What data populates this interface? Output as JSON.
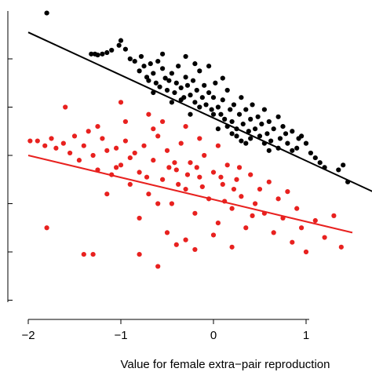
{
  "chart_data": {
    "type": "scatter",
    "title": "",
    "xlabel": "Value for female extra−pair reproduction",
    "ylabel": "",
    "xlim": [
      -2.2,
      1.75
    ],
    "ylim": [
      -3.2,
      3.05
    ],
    "x_ticks": [
      -2,
      -1,
      0,
      1
    ],
    "x_tick_labels": [
      "−2",
      "−1",
      "0",
      "1"
    ],
    "y_ticks": [
      -3,
      -2,
      -1,
      0,
      1,
      2
    ],
    "y_tick_labels": [
      "",
      "",
      "",
      "",
      "",
      ""
    ],
    "grid": false,
    "legend": "none",
    "series": [
      {
        "color": "#000000",
        "fit_line": {
          "x": [
            -2.0,
            1.72
          ],
          "y": [
            2.55,
            -0.75
          ]
        },
        "points": [
          [
            -1.8,
            2.95
          ],
          [
            -1.32,
            2.1
          ],
          [
            -1.28,
            2.1
          ],
          [
            -1.25,
            2.08
          ],
          [
            -1.2,
            2.1
          ],
          [
            -1.15,
            2.13
          ],
          [
            -1.1,
            2.18
          ],
          [
            -1.02,
            2.28
          ],
          [
            -1.0,
            2.38
          ],
          [
            -0.95,
            2.2
          ],
          [
            -0.9,
            2.0
          ],
          [
            -0.85,
            1.95
          ],
          [
            -0.8,
            1.75
          ],
          [
            -0.78,
            2.05
          ],
          [
            -0.75,
            1.85
          ],
          [
            -0.72,
            1.62
          ],
          [
            -0.7,
            1.55
          ],
          [
            -0.68,
            1.9
          ],
          [
            -0.65,
            1.7
          ],
          [
            -0.62,
            1.5
          ],
          [
            -0.6,
            1.95
          ],
          [
            -0.58,
            1.42
          ],
          [
            -0.55,
            1.8
          ],
          [
            -0.52,
            1.6
          ],
          [
            -0.5,
            1.35
          ],
          [
            -0.48,
            1.55
          ],
          [
            -0.45,
            1.7
          ],
          [
            -0.42,
            1.3
          ],
          [
            -0.4,
            1.5
          ],
          [
            -0.38,
            1.85
          ],
          [
            -0.35,
            1.4
          ],
          [
            -0.32,
            1.2
          ],
          [
            -0.3,
            1.62
          ],
          [
            -0.28,
            1.45
          ],
          [
            -0.25,
            1.25
          ],
          [
            -0.22,
            1.55
          ],
          [
            -0.2,
            1.1
          ],
          [
            -0.18,
            1.35
          ],
          [
            -0.15,
            1.75
          ],
          [
            -0.12,
            1.2
          ],
          [
            -0.1,
            1.45
          ],
          [
            -0.08,
            1.05
          ],
          [
            -0.05,
            1.3
          ],
          [
            -0.02,
            0.95
          ],
          [
            0.0,
            1.2
          ],
          [
            0.02,
            1.5
          ],
          [
            0.05,
            1.0
          ],
          [
            0.08,
            0.85
          ],
          [
            0.1,
            1.15
          ],
          [
            0.12,
            0.75
          ],
          [
            0.15,
            1.35
          ],
          [
            0.18,
            0.95
          ],
          [
            0.2,
            0.7
          ],
          [
            0.22,
            1.05
          ],
          [
            0.25,
            0.55
          ],
          [
            0.28,
            0.85
          ],
          [
            0.3,
            1.2
          ],
          [
            0.32,
            0.65
          ],
          [
            0.35,
            0.95
          ],
          [
            0.38,
            0.5
          ],
          [
            0.4,
            0.75
          ],
          [
            0.42,
            1.05
          ],
          [
            0.45,
            0.55
          ],
          [
            0.48,
            0.8
          ],
          [
            0.5,
            0.4
          ],
          [
            0.52,
            0.65
          ],
          [
            0.55,
            0.95
          ],
          [
            0.58,
            0.45
          ],
          [
            0.6,
            0.7
          ],
          [
            0.62,
            0.3
          ],
          [
            0.65,
            0.55
          ],
          [
            0.7,
            0.8
          ],
          [
            0.72,
            0.35
          ],
          [
            0.75,
            0.6
          ],
          [
            0.8,
            0.25
          ],
          [
            0.85,
            0.5
          ],
          [
            0.9,
            0.15
          ],
          [
            0.95,
            0.4
          ],
          [
            1.05,
            0.05
          ],
          [
            1.1,
            -0.05
          ],
          [
            1.15,
            -0.15
          ],
          [
            1.2,
            -0.25
          ],
          [
            1.35,
            -0.3
          ],
          [
            1.4,
            -0.2
          ],
          [
            1.45,
            -0.55
          ],
          [
            -0.55,
            2.1
          ],
          [
            -0.3,
            2.05
          ],
          [
            -0.2,
            1.9
          ],
          [
            -0.05,
            1.85
          ],
          [
            0.1,
            1.6
          ],
          [
            -0.65,
            1.3
          ],
          [
            -0.45,
            1.1
          ],
          [
            -0.35,
            1.15
          ],
          [
            -0.15,
            1.0
          ],
          [
            0.0,
            0.85
          ],
          [
            0.15,
            0.6
          ],
          [
            0.25,
            0.4
          ],
          [
            0.3,
            0.3
          ],
          [
            0.4,
            0.35
          ],
          [
            0.55,
            0.25
          ],
          [
            0.6,
            0.1
          ],
          [
            0.7,
            0.15
          ],
          [
            0.78,
            0.45
          ],
          [
            0.85,
            0.1
          ],
          [
            0.92,
            0.35
          ],
          [
            1.0,
            0.25
          ],
          [
            -0.25,
            0.85
          ],
          [
            0.05,
            0.55
          ],
          [
            0.2,
            0.45
          ],
          [
            0.35,
            0.25
          ]
        ]
      },
      {
        "color": "#e8211f",
        "fit_line": {
          "x": [
            -2.0,
            1.5
          ],
          "y": [
            0.0,
            -1.6
          ]
        },
        "points": [
          [
            -1.98,
            0.3
          ],
          [
            -1.9,
            0.3
          ],
          [
            -1.82,
            0.2
          ],
          [
            -1.75,
            0.35
          ],
          [
            -1.7,
            0.15
          ],
          [
            -1.62,
            0.25
          ],
          [
            -1.55,
            0.05
          ],
          [
            -1.5,
            0.4
          ],
          [
            -1.45,
            -0.1
          ],
          [
            -1.4,
            0.2
          ],
          [
            -1.35,
            0.5
          ],
          [
            -1.3,
            0.0
          ],
          [
            -1.25,
            -0.3
          ],
          [
            -1.2,
            0.35
          ],
          [
            -1.15,
            0.1
          ],
          [
            -1.1,
            -0.4
          ],
          [
            -1.05,
            0.15
          ],
          [
            -1.0,
            -0.2
          ],
          [
            -0.95,
            0.3
          ],
          [
            -0.9,
            -0.6
          ],
          [
            -0.85,
            0.05
          ],
          [
            -0.8,
            -0.35
          ],
          [
            -0.75,
            0.2
          ],
          [
            -0.7,
            -0.8
          ],
          [
            -0.65,
            -0.1
          ],
          [
            -0.6,
            0.4
          ],
          [
            -0.55,
            -0.5
          ],
          [
            -0.5,
            0.1
          ],
          [
            -0.45,
            -1.0
          ],
          [
            -0.4,
            -0.3
          ],
          [
            -0.35,
            0.25
          ],
          [
            -0.3,
            -0.7
          ],
          [
            -0.25,
            -0.15
          ],
          [
            -0.2,
            -1.2
          ],
          [
            -0.15,
            -0.45
          ],
          [
            -0.1,
            0.0
          ],
          [
            -0.05,
            -0.9
          ],
          [
            0.0,
            -0.35
          ],
          [
            0.05,
            -1.4
          ],
          [
            0.1,
            -0.6
          ],
          [
            0.15,
            -0.2
          ],
          [
            0.2,
            -1.1
          ],
          [
            0.25,
            -0.5
          ],
          [
            0.3,
            -0.85
          ],
          [
            0.35,
            -1.5
          ],
          [
            0.4,
            -0.4
          ],
          [
            0.45,
            -1.0
          ],
          [
            0.5,
            -0.7
          ],
          [
            0.55,
            -1.2
          ],
          [
            0.6,
            -0.55
          ],
          [
            0.65,
            -1.6
          ],
          [
            0.7,
            -0.9
          ],
          [
            0.75,
            -1.3
          ],
          [
            0.8,
            -0.75
          ],
          [
            0.85,
            -1.8
          ],
          [
            0.9,
            -1.1
          ],
          [
            0.95,
            -1.5
          ],
          [
            1.0,
            -2.0
          ],
          [
            1.1,
            -1.35
          ],
          [
            1.2,
            -1.7
          ],
          [
            1.3,
            -1.25
          ],
          [
            1.38,
            -1.9
          ],
          [
            -1.8,
            -1.5
          ],
          [
            -1.4,
            -2.05
          ],
          [
            -1.3,
            -2.05
          ],
          [
            -1.6,
            1.0
          ],
          [
            -1.0,
            1.1
          ],
          [
            -0.8,
            -2.05
          ],
          [
            -0.6,
            -2.3
          ],
          [
            -0.4,
            -1.85
          ],
          [
            -0.2,
            -1.95
          ],
          [
            -0.5,
            -1.6
          ],
          [
            -0.3,
            -1.75
          ],
          [
            0.0,
            -1.65
          ],
          [
            0.2,
            -1.9
          ],
          [
            -0.95,
            0.7
          ],
          [
            -0.7,
            0.85
          ],
          [
            -0.55,
            0.7
          ],
          [
            -0.3,
            0.6
          ],
          [
            -0.15,
            0.35
          ],
          [
            0.05,
            0.2
          ],
          [
            -0.8,
            -1.3
          ],
          [
            -0.6,
            -1.0
          ],
          [
            -0.42,
            -0.15
          ],
          [
            -0.28,
            -0.4
          ],
          [
            -0.12,
            -0.65
          ],
          [
            0.12,
            -0.95
          ],
          [
            0.28,
            -0.25
          ],
          [
            0.42,
            -1.25
          ],
          [
            -1.15,
            -0.8
          ],
          [
            -1.25,
            0.6
          ],
          [
            -0.9,
            -0.05
          ],
          [
            -0.72,
            -0.45
          ],
          [
            -0.38,
            -0.6
          ],
          [
            -0.18,
            -0.25
          ],
          [
            0.08,
            -0.45
          ],
          [
            0.22,
            -0.7
          ],
          [
            -1.05,
            -0.25
          ],
          [
            -0.65,
            0.55
          ],
          [
            -0.48,
            -0.25
          ]
        ]
      }
    ]
  }
}
